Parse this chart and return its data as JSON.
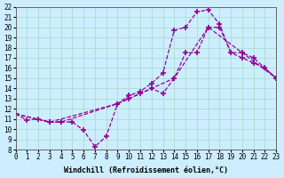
{
  "xlabel": "Windchill (Refroidissement éolien,°C)",
  "bg_color": "#cceeff",
  "grid_color": "#aaddcc",
  "line_color": "#990099",
  "xmin": 0,
  "xmax": 23,
  "ymin": 8,
  "ymax": 22,
  "line1_x": [
    0,
    1,
    2,
    3,
    4,
    5,
    6,
    7,
    8,
    9,
    10,
    11,
    12,
    13,
    14,
    15,
    16,
    17,
    18,
    19,
    20,
    21,
    22,
    23
  ],
  "line1_y": [
    11.5,
    10.9,
    11.0,
    10.7,
    10.7,
    10.7,
    9.9,
    8.3,
    9.3,
    12.5,
    13.3,
    13.7,
    14.5,
    15.5,
    19.7,
    20.0,
    21.5,
    21.7,
    20.3,
    17.5,
    17.0,
    16.5,
    16.0,
    15.0
  ],
  "line2_x": [
    0,
    3,
    4,
    9,
    10,
    11,
    12,
    13,
    14,
    15,
    16,
    17,
    18,
    19,
    20,
    21,
    22,
    23
  ],
  "line2_y": [
    11.5,
    10.7,
    10.7,
    12.5,
    13.0,
    13.5,
    14.0,
    13.5,
    15.0,
    17.5,
    17.5,
    20.0,
    20.0,
    17.5,
    17.5,
    17.0,
    16.0,
    15.0
  ],
  "line3_x": [
    0,
    3,
    9,
    14,
    17,
    20,
    23
  ],
  "line3_y": [
    11.5,
    10.7,
    12.5,
    15.0,
    20.0,
    17.5,
    15.0
  ]
}
